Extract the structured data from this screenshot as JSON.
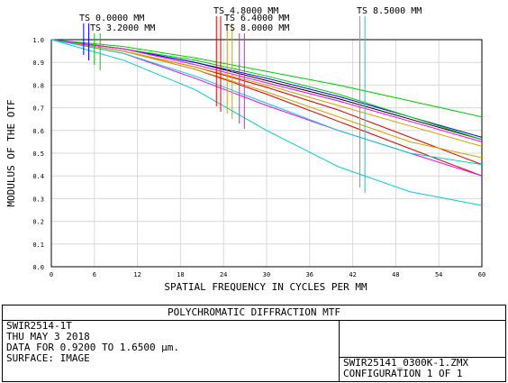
{
  "chart_data": {
    "type": "line",
    "xlabel": "SPATIAL FREQUENCY IN CYCLES PER MM",
    "ylabel": "MODULUS OF THE OTF",
    "xlim": [
      0,
      60
    ],
    "ylim": [
      0.0,
      1.0
    ],
    "x_ticks": [
      "0",
      "6",
      "12",
      "18",
      "24",
      "30",
      "36",
      "42",
      "48",
      "54",
      "60"
    ],
    "y_ticks": [
      "0.0",
      "0.1",
      "0.2",
      "0.3",
      "0.4",
      "0.5",
      "0.6",
      "0.7",
      "0.8",
      "0.9",
      "1.0"
    ],
    "grid": true,
    "field_legend": [
      {
        "label": "TS 0.0000 MM",
        "color": "#0000ff",
        "x_t": 4.5,
        "x_s": 5.2
      },
      {
        "label": "TS 3.2000 MM",
        "color": "#00cc00",
        "x_t": 6.0,
        "x_s": 6.8
      },
      {
        "label": "TS 4.8000 MM",
        "color": "#e00000",
        "x_t": 23.0,
        "x_s": 23.6
      },
      {
        "label": "TS 6.4000 MM",
        "color": "#d4a000",
        "x_t": 24.5,
        "x_s": 25.2
      },
      {
        "label": "TS 8.0000 MM",
        "color": "#ff00ff",
        "x_t": 26.2,
        "x_s": 26.9
      },
      {
        "label": "TS 8.5000 MM",
        "color": "#00d0d0",
        "x_t": 43.0,
        "x_s": 43.7
      }
    ],
    "series": [
      {
        "color": "#000000",
        "x": [
          0,
          10,
          20,
          30,
          40,
          50,
          60
        ],
        "y": [
          1.0,
          0.96,
          0.9,
          0.82,
          0.74,
          0.65,
          0.56
        ]
      },
      {
        "color": "#0000ff",
        "x": [
          0,
          10,
          20,
          30,
          40,
          50,
          60
        ],
        "y": [
          1.0,
          0.96,
          0.9,
          0.83,
          0.75,
          0.66,
          0.57
        ]
      },
      {
        "color": "#00cc00",
        "x": [
          0,
          10,
          20,
          30,
          40,
          50,
          60
        ],
        "y": [
          1.0,
          0.97,
          0.92,
          0.86,
          0.8,
          0.73,
          0.66
        ]
      },
      {
        "color": "#00cc00",
        "x": [
          0,
          10,
          20,
          30,
          40,
          50,
          60
        ],
        "y": [
          1.0,
          0.96,
          0.91,
          0.84,
          0.76,
          0.66,
          0.56
        ]
      },
      {
        "color": "#e00000",
        "x": [
          0,
          10,
          20,
          30,
          40,
          50,
          60
        ],
        "y": [
          1.0,
          0.95,
          0.88,
          0.79,
          0.69,
          0.57,
          0.45
        ]
      },
      {
        "color": "#e00000",
        "x": [
          0,
          10,
          20,
          30,
          40,
          50,
          60
        ],
        "y": [
          1.0,
          0.95,
          0.87,
          0.76,
          0.64,
          0.52,
          0.4
        ]
      },
      {
        "color": "#d4a000",
        "x": [
          0,
          10,
          20,
          30,
          40,
          50,
          60
        ],
        "y": [
          1.0,
          0.95,
          0.88,
          0.8,
          0.71,
          0.62,
          0.53
        ]
      },
      {
        "color": "#d4a000",
        "x": [
          0,
          10,
          20,
          30,
          40,
          50,
          60
        ],
        "y": [
          1.0,
          0.95,
          0.87,
          0.77,
          0.66,
          0.55,
          0.48
        ]
      },
      {
        "color": "#ff00ff",
        "x": [
          0,
          10,
          20,
          30,
          40,
          50,
          60
        ],
        "y": [
          1.0,
          0.96,
          0.89,
          0.81,
          0.73,
          0.64,
          0.55
        ]
      },
      {
        "color": "#ff00ff",
        "x": [
          0,
          10,
          20,
          30,
          40,
          50,
          60
        ],
        "y": [
          1.0,
          0.94,
          0.83,
          0.71,
          0.6,
          0.5,
          0.4
        ]
      },
      {
        "color": "#00d0d0",
        "x": [
          0,
          10,
          20,
          30,
          40,
          50,
          60
        ],
        "y": [
          1.0,
          0.94,
          0.84,
          0.72,
          0.6,
          0.5,
          0.45
        ]
      },
      {
        "color": "#00d0d0",
        "x": [
          0,
          10,
          20,
          30,
          40,
          50,
          60
        ],
        "y": [
          1.0,
          0.91,
          0.78,
          0.6,
          0.44,
          0.33,
          0.27
        ]
      }
    ]
  },
  "info": {
    "title": "POLYCHROMATIC DIFFRACTION MTF",
    "line1": "SWIR2514-1T",
    "line2": "THU MAY 3 2018",
    "line3": "DATA FOR 0.9200 TO 1.6500 µm.",
    "line4": "SURFACE: IMAGE",
    "file": "SWIR25141_0300K-1.ZMX",
    "config": "CONFIGURATION 1 OF 1"
  }
}
